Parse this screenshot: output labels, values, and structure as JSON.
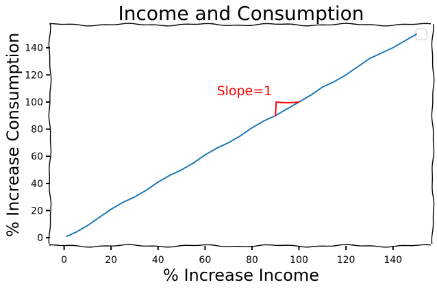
{
  "chart_data": {
    "type": "line",
    "title": "Income and Consumption",
    "xlabel": "% Increase Income",
    "ylabel": "% Increase Consumption",
    "xlim": [
      -6,
      157
    ],
    "ylim": [
      -6,
      157
    ],
    "xticks": [
      0,
      20,
      40,
      60,
      80,
      100,
      120,
      140
    ],
    "yticks": [
      0,
      20,
      40,
      60,
      80,
      100,
      120,
      140
    ],
    "grid": false,
    "legend": "top-right (empty)",
    "series": [
      {
        "color": "#1f77b4",
        "x": [
          1,
          5,
          10,
          15,
          20,
          25,
          30,
          35,
          40,
          45,
          50,
          55,
          60,
          65,
          70,
          75,
          80,
          85,
          90,
          95,
          100,
          105,
          110,
          115,
          120,
          125,
          130,
          135,
          140,
          145,
          150
        ],
        "y": [
          1,
          4,
          9,
          15,
          21,
          26,
          30,
          35,
          41,
          46,
          50,
          55,
          61,
          66,
          70,
          75,
          81,
          86,
          90,
          95,
          100,
          105,
          111,
          115,
          120,
          126,
          132,
          136,
          140,
          145,
          150
        ]
      }
    ],
    "annotations": [
      {
        "text": "Slope=1",
        "color": "#ff0000",
        "anchor": [
          65,
          105
        ],
        "triangle": [
          [
            90,
            90
          ],
          [
            90,
            100
          ],
          [
            100,
            100
          ]
        ]
      }
    ]
  }
}
